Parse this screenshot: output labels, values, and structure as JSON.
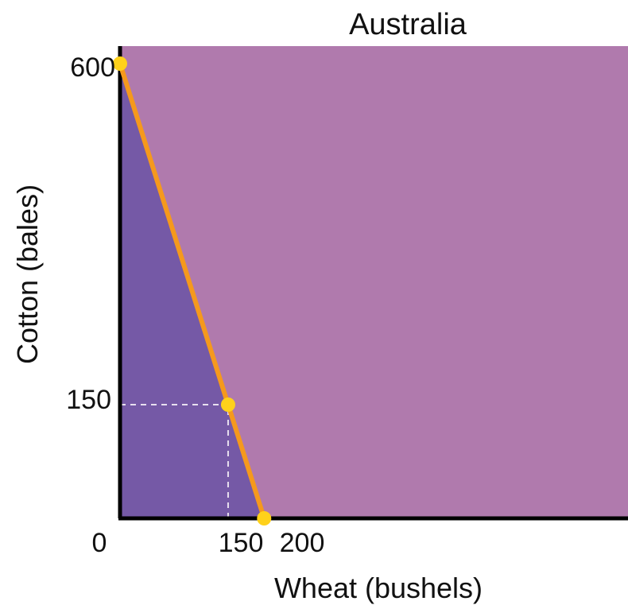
{
  "chart_data": {
    "type": "line",
    "title": "Australia",
    "xlabel": "Wheat (bushels)",
    "ylabel": "Cotton (bales)",
    "xlim": [
      0,
      705
    ],
    "ylim": [
      0,
      600
    ],
    "x_ticks": [
      "0",
      "150",
      "200"
    ],
    "y_ticks": [
      "600",
      "150"
    ],
    "series": [
      {
        "points": [
          {
            "x": 0,
            "y": 600
          },
          {
            "x": 200,
            "y": 0
          }
        ]
      }
    ],
    "highlighted_points": [
      {
        "x": 0,
        "y": 600
      },
      {
        "x": 150,
        "y": 150
      },
      {
        "x": 200,
        "y": 0
      }
    ],
    "reference_lines": [
      {
        "from": {
          "x": 0,
          "y": 150
        },
        "to": {
          "x": 150,
          "y": 150
        }
      },
      {
        "from": {
          "x": 150,
          "y": 0
        },
        "to": {
          "x": 150,
          "y": 150
        }
      }
    ],
    "grid": false,
    "colors": {
      "background_region": "#b07aad",
      "feasible_region": "#7559a6",
      "frontier_line": "#f5991d",
      "points": "#ffd11a",
      "reference_lines": "#e8e0ef",
      "axes": "#000000"
    }
  }
}
